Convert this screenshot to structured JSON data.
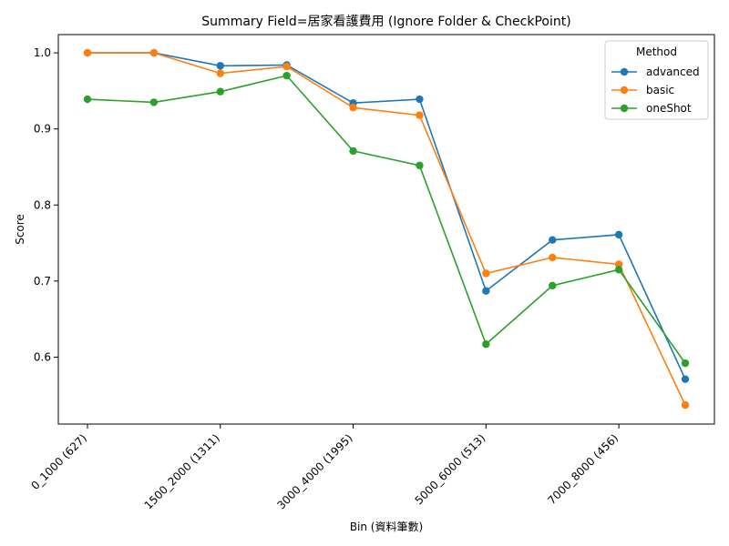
{
  "chart_data": {
    "type": "line",
    "title": "Summary Field=居家看護費用 (Ignore Folder & CheckPoint)",
    "xlabel": "Bin (資料筆數)",
    "ylabel": "Score",
    "categories": [
      "0_1000 (627)",
      "",
      "1500_2000 (1311)",
      "",
      "3000_4000 (1995)",
      "",
      "5000_6000 (513)",
      "",
      "7000_8000 (456)",
      ""
    ],
    "x_tick_labels": [
      "0_1000 (627)",
      "1500_2000 (1311)",
      "3000_4000 (1995)",
      "5000_6000 (513)",
      "7000_8000 (456)"
    ],
    "y_ticks": [
      "0.6",
      "0.7",
      "0.8",
      "0.9",
      "1.0"
    ],
    "ylim": [
      0.512,
      1.024
    ],
    "legend_title": "Method",
    "legend_position": "top-right",
    "grid": false,
    "series": [
      {
        "name": "advanced",
        "color": "#1f77b4",
        "values": [
          1.0,
          1.0,
          0.983,
          0.984,
          0.934,
          0.939,
          0.687,
          0.754,
          0.761,
          0.571
        ]
      },
      {
        "name": "basic",
        "color": "#ff7f0e",
        "values": [
          1.0,
          1.0,
          0.973,
          0.982,
          0.928,
          0.918,
          0.71,
          0.731,
          0.722,
          0.537
        ]
      },
      {
        "name": "oneShot",
        "color": "#2ca02c",
        "values": [
          0.939,
          0.935,
          0.949,
          0.97,
          0.871,
          0.852,
          0.617,
          0.694,
          0.715,
          0.592
        ]
      }
    ]
  }
}
